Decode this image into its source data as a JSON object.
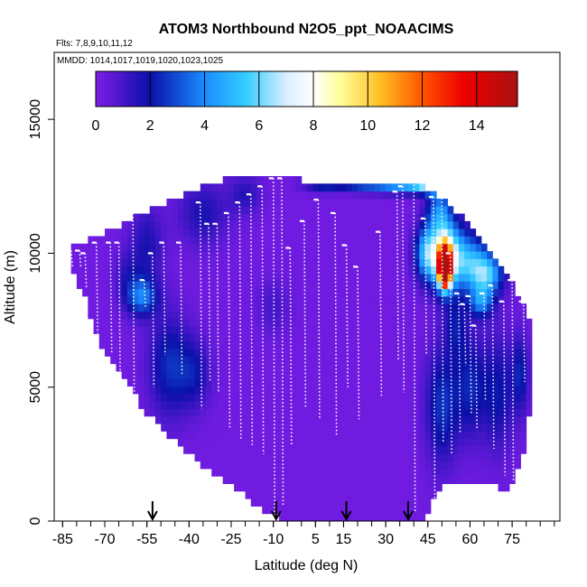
{
  "chart_data": {
    "type": "heatmap",
    "title": "ATOM3 Northbound N2O5_ppt_NOAACIMS",
    "flights_label": "Flts: 7,8,9,10,11,12",
    "mmdd_label": "MMDD: 1014,1017,1019,1020,1023,1025",
    "xlabel": "Latitude (deg N)",
    "ylabel": "Altitude (m)",
    "xlim": [
      -88,
      92
    ],
    "ylim": [
      0,
      17500
    ],
    "x_ticks": [
      -85,
      -70,
      -55,
      -40,
      -25,
      -10,
      5,
      15,
      30,
      45,
      60,
      75
    ],
    "x_tick_labels": [
      "-85",
      "-70",
      "-55",
      "-40",
      "-25",
      "-10",
      "5",
      "15",
      "30",
      "45",
      "60",
      "75"
    ],
    "y_ticks": [
      0,
      5000,
      10000,
      15000
    ],
    "y_tick_labels": [
      "0",
      "5000",
      "10000",
      "15000"
    ],
    "colorbar": {
      "min": 0,
      "max": 15.5,
      "ticks": [
        0,
        2,
        4,
        6,
        8,
        10,
        12,
        14
      ],
      "tick_labels": [
        "0",
        "2",
        "4",
        "6",
        "8",
        "10",
        "12",
        "14"
      ],
      "stops": [
        [
          0,
          "#7f1de8"
        ],
        [
          2,
          "#0a10a8"
        ],
        [
          4,
          "#1a8cff"
        ],
        [
          5.5,
          "#33ccff"
        ],
        [
          7,
          "#d8eeff"
        ],
        [
          8,
          "#ffffff"
        ],
        [
          9,
          "#ffff99"
        ],
        [
          10.5,
          "#ffbb22"
        ],
        [
          12,
          "#ff5500"
        ],
        [
          13.5,
          "#ee0000"
        ],
        [
          15.5,
          "#aa1111"
        ]
      ]
    },
    "arrow_latitudes": [
      -53,
      -9,
      16,
      38
    ],
    "envelope": [
      [
        -82,
        9500,
        10300
      ],
      [
        -79,
        8800,
        10300
      ],
      [
        -76,
        8000,
        10500
      ],
      [
        -73,
        7000,
        10600
      ],
      [
        -70,
        6200,
        10800
      ],
      [
        -65,
        5500,
        11000
      ],
      [
        -60,
        4800,
        11300
      ],
      [
        -55,
        4000,
        11600
      ],
      [
        -50,
        3500,
        11800
      ],
      [
        -45,
        3000,
        12000
      ],
      [
        -40,
        2500,
        12300
      ],
      [
        -35,
        2000,
        12500
      ],
      [
        -30,
        1700,
        12700
      ],
      [
        -25,
        1400,
        12800
      ],
      [
        -20,
        1000,
        12800
      ],
      [
        -15,
        500,
        12900
      ],
      [
        -10,
        200,
        13000
      ],
      [
        -5,
        0,
        12900
      ],
      [
        0,
        0,
        12700
      ],
      [
        5,
        0,
        12700
      ],
      [
        10,
        0,
        12700
      ],
      [
        15,
        0,
        12700
      ],
      [
        20,
        0,
        12700
      ],
      [
        25,
        0,
        12700
      ],
      [
        30,
        0,
        12700
      ],
      [
        35,
        0,
        12700
      ],
      [
        40,
        0,
        12700
      ],
      [
        43,
        0,
        12700
      ],
      [
        46,
        500,
        12300
      ],
      [
        50,
        1500,
        12000
      ],
      [
        55,
        1500,
        11600
      ],
      [
        60,
        1500,
        11000
      ],
      [
        65,
        1500,
        10300
      ],
      [
        70,
        1500,
        9700
      ],
      [
        72,
        1000,
        9300
      ],
      [
        76,
        1500,
        8700
      ],
      [
        79,
        2500,
        8200
      ],
      [
        81,
        4000,
        7500
      ]
    ],
    "blobs": [
      {
        "lat": 47,
        "alt": 12500,
        "slat": 5,
        "salt": 200,
        "value": 6.2
      },
      {
        "lat": 35,
        "alt": 12550,
        "slat": 6,
        "salt": 200,
        "value": 3.8
      },
      {
        "lat": 22,
        "alt": 12600,
        "slat": 6,
        "salt": 200,
        "value": 2.8
      },
      {
        "lat": 8,
        "alt": 12600,
        "slat": 5,
        "salt": 200,
        "value": 2.2
      },
      {
        "lat": 52,
        "alt": 10000,
        "slat": 4,
        "salt": 900,
        "value": 5.5
      },
      {
        "lat": 45,
        "alt": 10000,
        "slat": 3,
        "salt": 700,
        "value": 5.2
      },
      {
        "lat": 60,
        "alt": 9700,
        "slat": 5,
        "salt": 700,
        "value": 4.0
      },
      {
        "lat": 49,
        "alt": 11600,
        "slat": 3,
        "salt": 600,
        "value": 3.2
      },
      {
        "lat": 66,
        "alt": 9200,
        "slat": 4,
        "salt": 500,
        "value": 4.5
      },
      {
        "lat": 64,
        "alt": 8200,
        "slat": 3,
        "salt": 400,
        "value": 3.6
      },
      {
        "lat": 51,
        "alt": 9600,
        "slat": 1.8,
        "salt": 600,
        "value": 12.5
      },
      {
        "lat": 51,
        "alt": 9300,
        "slat": 1.0,
        "salt": 300,
        "value": 15.0
      },
      {
        "lat": -57,
        "alt": 8400,
        "slat": 4,
        "salt": 500,
        "value": 3.5
      },
      {
        "lat": -47,
        "alt": 5800,
        "slat": 5,
        "salt": 1300,
        "value": 2.2
      },
      {
        "lat": -38,
        "alt": 5500,
        "slat": 4,
        "salt": 900,
        "value": 1.6
      },
      {
        "lat": -55,
        "alt": 10300,
        "slat": 4,
        "salt": 1000,
        "value": 1.5
      },
      {
        "lat": -35,
        "alt": 11500,
        "slat": 6,
        "salt": 800,
        "value": 1.5
      },
      {
        "lat": -62,
        "alt": 9300,
        "slat": 3,
        "salt": 600,
        "value": 1.0
      },
      {
        "lat": 50,
        "alt": 4300,
        "slat": 4,
        "salt": 1500,
        "value": 2.3
      },
      {
        "lat": 60,
        "alt": 5000,
        "slat": 4,
        "salt": 1300,
        "value": 2.0
      },
      {
        "lat": 70,
        "alt": 4800,
        "slat": 4,
        "salt": 1500,
        "value": 1.8
      },
      {
        "lat": 78,
        "alt": 5500,
        "slat": 2,
        "salt": 1000,
        "value": 2.0
      },
      {
        "lat": 55,
        "alt": 7300,
        "slat": 3,
        "salt": 800,
        "value": 1.6
      },
      {
        "lat": -10,
        "alt": 8000,
        "slat": 4,
        "salt": 700,
        "value": 0.8
      },
      {
        "lat": -20,
        "alt": 12200,
        "slat": 4,
        "salt": 500,
        "value": 1.3
      }
    ],
    "profiles": [
      [
        -82,
        10100,
        9500
      ],
      [
        -79,
        10100,
        9500
      ],
      [
        -77,
        10000,
        8700
      ],
      [
        -73,
        10400,
        7000
      ],
      [
        -68,
        10400,
        6300
      ],
      [
        -65,
        10400,
        5500
      ],
      [
        -60,
        11900,
        4800
      ],
      [
        -56,
        9000,
        8000
      ],
      [
        -53,
        10000,
        5000
      ],
      [
        -49,
        10400,
        6200
      ],
      [
        -43,
        10400,
        5500
      ],
      [
        -36,
        11900,
        4200
      ],
      [
        -33,
        11100,
        5200
      ],
      [
        -30,
        11100,
        4800
      ],
      [
        -26,
        11500,
        3500
      ],
      [
        -22,
        11900,
        3000
      ],
      [
        -18,
        12200,
        2800
      ],
      [
        -14,
        12500,
        2500
      ],
      [
        -10,
        12800,
        200
      ],
      [
        -7,
        12800,
        600
      ],
      [
        -4,
        10200,
        2800
      ],
      [
        1,
        11200,
        4200
      ],
      [
        6,
        12000,
        3800
      ],
      [
        12,
        11500,
        3200
      ],
      [
        16,
        10300,
        5000
      ],
      [
        20,
        9500,
        3800
      ],
      [
        28,
        10800,
        4600
      ],
      [
        34,
        12300,
        6000
      ],
      [
        36,
        12500,
        4800
      ],
      [
        40,
        12700,
        300
      ],
      [
        44,
        11300,
        6200
      ],
      [
        47,
        12100,
        600
      ],
      [
        50,
        12200,
        2900
      ],
      [
        53,
        10000,
        2500
      ],
      [
        56,
        8500,
        3300
      ],
      [
        58,
        8100,
        5800
      ],
      [
        60,
        8400,
        4000
      ],
      [
        62,
        7300,
        3400
      ],
      [
        65,
        8500,
        4500
      ],
      [
        68,
        8800,
        2700
      ],
      [
        72,
        8200,
        1700
      ],
      [
        75,
        9000,
        1500
      ],
      [
        79,
        8200,
        5200
      ]
    ]
  }
}
